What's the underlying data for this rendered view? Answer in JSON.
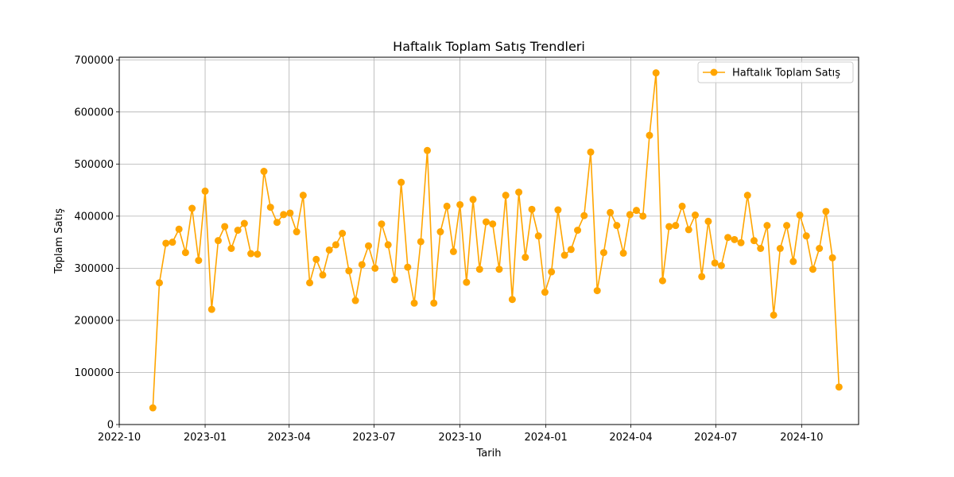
{
  "chart_data": {
    "type": "line",
    "title": "Haftalık Toplam Satış Trendleri",
    "xlabel": "Tarih",
    "ylabel": "Toplam Satış",
    "xlim": [
      "2022-10-01",
      "2024-12-01"
    ],
    "ylim": [
      0,
      705000
    ],
    "x_ticks": [
      "2022-10-01",
      "2023-01-01",
      "2023-04-01",
      "2023-07-01",
      "2023-10-01",
      "2024-01-01",
      "2024-04-01",
      "2024-07-01",
      "2024-10-01"
    ],
    "x_tick_labels": [
      "2022-10",
      "2023-01",
      "2023-04",
      "2023-07",
      "2023-10",
      "2024-01",
      "2024-04",
      "2024-07",
      "2024-10"
    ],
    "y_ticks": [
      0,
      100000,
      200000,
      300000,
      400000,
      500000,
      600000,
      700000
    ],
    "y_tick_labels": [
      "0",
      "100000",
      "200000",
      "300000",
      "400000",
      "500000",
      "600000",
      "700000"
    ],
    "grid": true,
    "legend_position": "top-right",
    "color": "#ffa500",
    "series": [
      {
        "name": "Haftalık Toplam Satış",
        "x": [
          "2022-11-06",
          "2022-11-13",
          "2022-11-20",
          "2022-11-27",
          "2022-12-04",
          "2022-12-11",
          "2022-12-18",
          "2022-12-25",
          "2023-01-01",
          "2023-01-08",
          "2023-01-15",
          "2023-01-22",
          "2023-01-29",
          "2023-02-05",
          "2023-02-12",
          "2023-02-19",
          "2023-02-26",
          "2023-03-05",
          "2023-03-12",
          "2023-03-19",
          "2023-03-26",
          "2023-04-02",
          "2023-04-09",
          "2023-04-16",
          "2023-04-23",
          "2023-04-30",
          "2023-05-07",
          "2023-05-14",
          "2023-05-21",
          "2023-05-28",
          "2023-06-04",
          "2023-06-11",
          "2023-06-18",
          "2023-06-25",
          "2023-07-02",
          "2023-07-09",
          "2023-07-16",
          "2023-07-23",
          "2023-07-30",
          "2023-08-06",
          "2023-08-13",
          "2023-08-20",
          "2023-08-27",
          "2023-09-03",
          "2023-09-10",
          "2023-09-17",
          "2023-09-24",
          "2023-10-01",
          "2023-10-08",
          "2023-10-15",
          "2023-10-22",
          "2023-10-29",
          "2023-11-05",
          "2023-11-12",
          "2023-11-19",
          "2023-11-26",
          "2023-12-03",
          "2023-12-10",
          "2023-12-17",
          "2023-12-24",
          "2023-12-31",
          "2024-01-07",
          "2024-01-14",
          "2024-01-21",
          "2024-01-28",
          "2024-02-04",
          "2024-02-11",
          "2024-02-18",
          "2024-02-25",
          "2024-03-03",
          "2024-03-10",
          "2024-03-17",
          "2024-03-24",
          "2024-03-31",
          "2024-04-07",
          "2024-04-14",
          "2024-04-21",
          "2024-04-28",
          "2024-05-05",
          "2024-05-12",
          "2024-05-19",
          "2024-05-26",
          "2024-06-02",
          "2024-06-09",
          "2024-06-16",
          "2024-06-23",
          "2024-06-30",
          "2024-07-07",
          "2024-07-14",
          "2024-07-21",
          "2024-07-28",
          "2024-08-04",
          "2024-08-11",
          "2024-08-18",
          "2024-08-25",
          "2024-09-01",
          "2024-09-08",
          "2024-09-15",
          "2024-09-22",
          "2024-09-29",
          "2024-10-06",
          "2024-10-13",
          "2024-10-20",
          "2024-10-27",
          "2024-11-03",
          "2024-11-10"
        ],
        "values": [
          32000,
          272000,
          348000,
          350000,
          375000,
          330000,
          415000,
          315000,
          448000,
          221000,
          353000,
          380000,
          338000,
          373000,
          386000,
          328000,
          327000,
          486000,
          417000,
          388000,
          403000,
          406000,
          370000,
          440000,
          272000,
          317000,
          287000,
          335000,
          345000,
          367000,
          295000,
          238000,
          307000,
          343000,
          300000,
          385000,
          345000,
          278000,
          465000,
          302000,
          233000,
          351000,
          526000,
          233000,
          370000,
          419000,
          332000,
          422000,
          273000,
          432000,
          298000,
          389000,
          385000,
          298000,
          440000,
          240000,
          446000,
          321000,
          413000,
          362000,
          254000,
          293000,
          412000,
          325000,
          336000,
          373000,
          401000,
          523000,
          257000,
          330000,
          407000,
          382000,
          329000,
          403000,
          411000,
          400000,
          555000,
          675000,
          276000,
          380000,
          382000,
          419000,
          374000,
          402000,
          284000,
          390000,
          310000,
          305000,
          359000,
          355000,
          349000,
          440000,
          353000,
          338000,
          382000,
          210000,
          338000,
          382000,
          313000,
          402000,
          362000,
          298000,
          338000,
          409000,
          320000,
          72000
        ]
      }
    ]
  }
}
